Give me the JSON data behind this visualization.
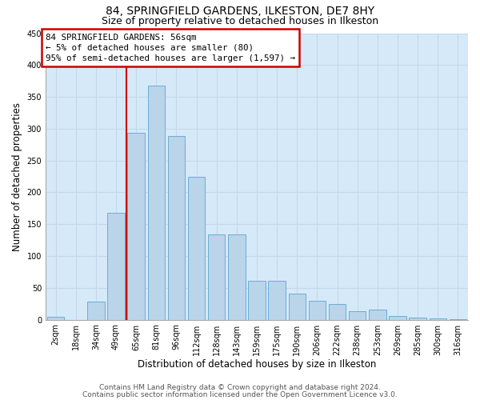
{
  "title1": "84, SPRINGFIELD GARDENS, ILKESTON, DE7 8HY",
  "title2": "Size of property relative to detached houses in Ilkeston",
  "xlabel": "Distribution of detached houses by size in Ilkeston",
  "ylabel": "Number of detached properties",
  "bar_labels": [
    "2sqm",
    "18sqm",
    "34sqm",
    "49sqm",
    "65sqm",
    "81sqm",
    "96sqm",
    "112sqm",
    "128sqm",
    "143sqm",
    "159sqm",
    "175sqm",
    "190sqm",
    "206sqm",
    "222sqm",
    "238sqm",
    "253sqm",
    "269sqm",
    "285sqm",
    "300sqm",
    "316sqm"
  ],
  "bar_values": [
    4,
    0,
    29,
    168,
    293,
    368,
    288,
    225,
    134,
    134,
    61,
    61,
    41,
    30,
    25,
    13,
    16,
    6,
    3,
    2,
    1
  ],
  "bar_color": "#bad4ea",
  "bar_edge_color": "#6aaed6",
  "bar_width": 0.85,
  "vline_x": 3.5,
  "vline_color": "#cc0000",
  "annotation_text": "84 SPRINGFIELD GARDENS: 56sqm\n← 5% of detached houses are smaller (80)\n95% of semi-detached houses are larger (1,597) →",
  "annotation_box_color": "#cc0000",
  "ylim": [
    0,
    450
  ],
  "yticks": [
    0,
    50,
    100,
    150,
    200,
    250,
    300,
    350,
    400,
    450
  ],
  "grid_color": "#c5d8ec",
  "background_color": "#d6e9f8",
  "footer1": "Contains HM Land Registry data © Crown copyright and database right 2024.",
  "footer2": "Contains public sector information licensed under the Open Government Licence v3.0.",
  "title1_fontsize": 10,
  "title2_fontsize": 9,
  "annotation_fontsize": 7.8,
  "ylabel_fontsize": 8.5,
  "xlabel_fontsize": 8.5,
  "tick_fontsize": 7,
  "footer_fontsize": 6.5
}
